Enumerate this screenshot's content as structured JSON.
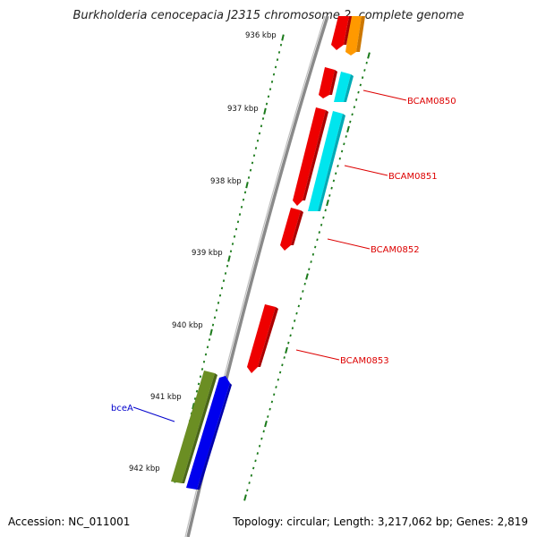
{
  "title": "Burkholderia cenocepacia J2315 chromosome 2, complete genome",
  "footer": {
    "accession": "Accession: NC_011001",
    "summary": "Topology: circular; Length: 3,217,062 bp; Genes: 2,819"
  },
  "ticks": [
    {
      "label": "936 kbp"
    },
    {
      "label": "937 kbp"
    },
    {
      "label": "938 kbp"
    },
    {
      "label": "939 kbp"
    },
    {
      "label": "940 kbp"
    },
    {
      "label": "941 kbp"
    },
    {
      "label": "942 kbp"
    }
  ],
  "gene_labels": [
    {
      "label": "BCAM0850",
      "color": "#dd0000"
    },
    {
      "label": "BCAM0851",
      "color": "#dd0000"
    },
    {
      "label": "BCAM0852",
      "color": "#dd0000"
    },
    {
      "label": "BCAM0853",
      "color": "#dd0000"
    },
    {
      "label": "bceA",
      "color": "#0000cc"
    }
  ],
  "colors": {
    "backbone": "#8a8a8a",
    "tick": "#1a7a1a",
    "red_feature": "#ee0000",
    "cyan_feature": "#00e5ee",
    "orange_feature": "#ff9900",
    "green_feature": "#6b8e23",
    "blue_feature": "#0000ee"
  }
}
